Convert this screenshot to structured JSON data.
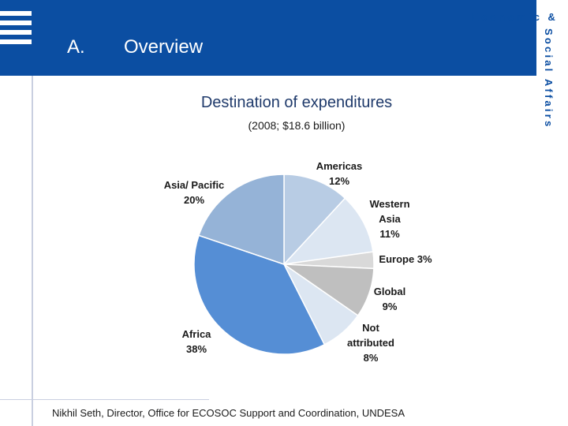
{
  "header": {
    "section_letter": "A.",
    "section_title": "Overview",
    "org_line1": "Economic &",
    "org_line2": "Social Affairs",
    "band_color": "#0b4ea2"
  },
  "chart_data": {
    "type": "pie",
    "title": "Destination of expenditures",
    "subtitle": "(2008; $18.6 billion)",
    "unit": "percent",
    "slices": [
      {
        "name": "Americas",
        "value": 12,
        "label_lines": [
          "Americas",
          "12%"
        ],
        "color": "#b8cce4"
      },
      {
        "name": "Western Asia",
        "value": 11,
        "label_lines": [
          "Western",
          "Asia",
          "11%"
        ],
        "color": "#dce6f2"
      },
      {
        "name": "Europe",
        "value": 3,
        "label_lines": [
          "Europe 3%"
        ],
        "color": "#d9d9d9"
      },
      {
        "name": "Global",
        "value": 9,
        "label_lines": [
          "Global",
          "9%"
        ],
        "color": "#bfbfbf"
      },
      {
        "name": "Not attributed",
        "value": 8,
        "label_lines": [
          "Not",
          "attributed",
          "8%"
        ],
        "color": "#dce6f2"
      },
      {
        "name": "Africa",
        "value": 38,
        "label_lines": [
          "Africa",
          "38%"
        ],
        "color": "#558ed5"
      },
      {
        "name": "Asia/ Pacific",
        "value": 20,
        "label_lines": [
          "Asia/ Pacific",
          "20%"
        ],
        "color": "#95b3d7"
      }
    ]
  },
  "footer": {
    "text": "Nikhil Seth, Director, Office for ECOSOC Support and Coordination, UNDESA"
  }
}
